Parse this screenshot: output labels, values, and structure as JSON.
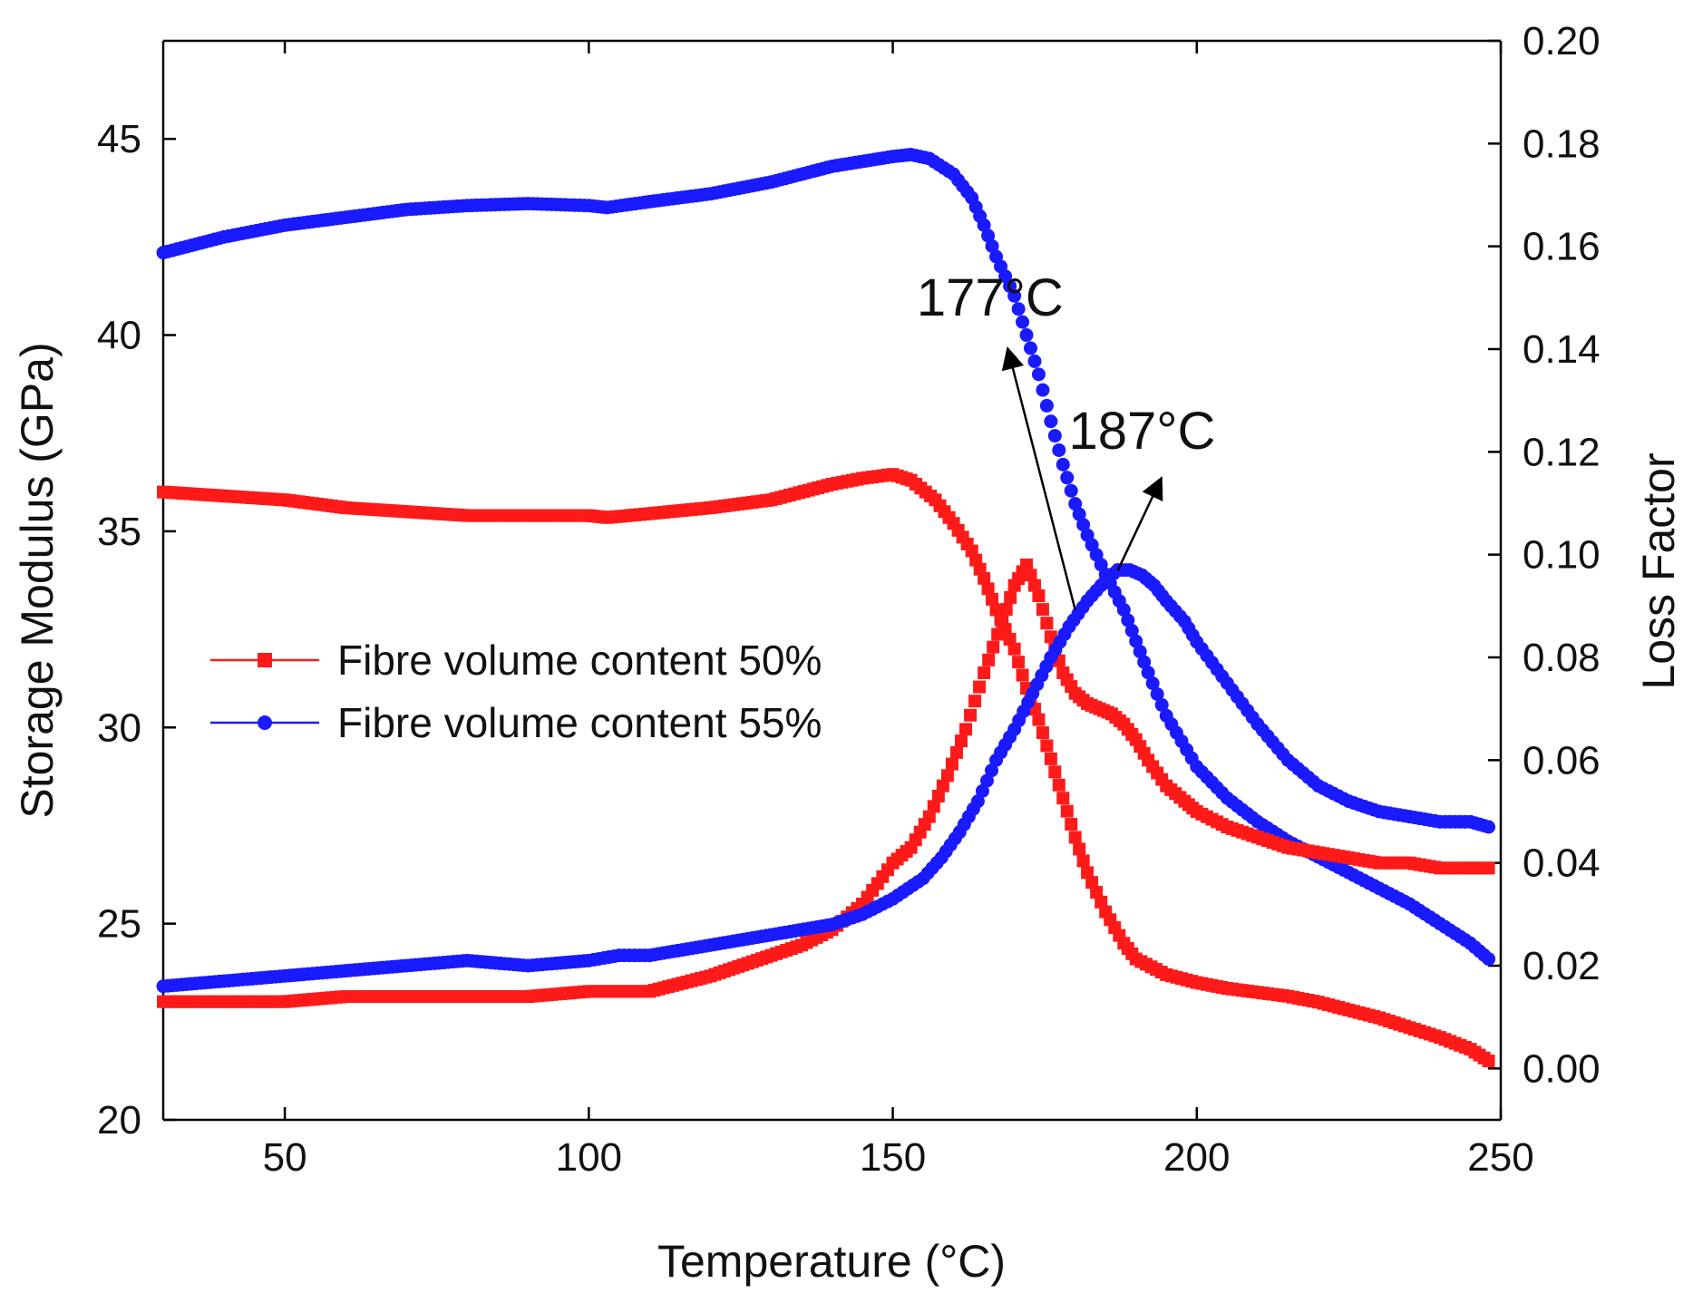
{
  "chart_data": {
    "type": "scatter",
    "title": "",
    "xlabel": "Temperature (°C)",
    "ylabel_left": "Storage Modulus (GPa)",
    "ylabel_right": "Loss Factor",
    "xlim": [
      30,
      250
    ],
    "ylim_left": [
      20,
      47.5
    ],
    "ylim_right": [
      -0.01,
      0.2
    ],
    "x_ticks": [
      "50",
      "100",
      "150",
      "200",
      "250"
    ],
    "y_left_ticks": [
      "20",
      "25",
      "30",
      "35",
      "40",
      "45"
    ],
    "y_right_ticks": [
      "0.00",
      "0.02",
      "0.04",
      "0.06",
      "0.08",
      "0.10",
      "0.12",
      "0.14",
      "0.16",
      "0.18",
      "0.20"
    ],
    "grid": false,
    "legend_position": "center-left",
    "series": [
      {
        "name": "Fibre volume content 50%",
        "color": "#ff1a1a",
        "marker": "square",
        "axis": "left",
        "quantity": "storage modulus",
        "x": [
          30,
          40,
          50,
          60,
          70,
          80,
          90,
          100,
          103,
          110,
          120,
          130,
          140,
          145,
          150,
          153,
          157,
          160,
          163,
          165,
          167,
          170,
          172,
          174,
          176,
          178,
          180,
          182,
          185,
          188,
          190,
          195,
          200,
          205,
          210,
          215,
          220,
          225,
          230,
          235,
          240,
          245,
          248
        ],
        "y": [
          36.0,
          35.9,
          35.8,
          35.6,
          35.5,
          35.4,
          35.4,
          35.4,
          35.35,
          35.45,
          35.6,
          35.8,
          36.2,
          36.35,
          36.45,
          36.3,
          35.8,
          35.2,
          34.5,
          33.8,
          33.0,
          32.0,
          31.0,
          30.2,
          29.2,
          28.2,
          27.2,
          26.3,
          25.3,
          24.5,
          24.1,
          23.7,
          23.5,
          23.35,
          23.25,
          23.15,
          23.0,
          22.8,
          22.6,
          22.35,
          22.1,
          21.8,
          21.5
        ]
      },
      {
        "name": "Fibre volume content 55%",
        "color": "#1a1aff",
        "marker": "circle",
        "axis": "left",
        "quantity": "storage modulus",
        "x": [
          30,
          40,
          50,
          60,
          70,
          80,
          90,
          100,
          103,
          110,
          120,
          130,
          140,
          150,
          153,
          156,
          160,
          163,
          165,
          167,
          170,
          172,
          174,
          176,
          178,
          180,
          182,
          185,
          188,
          190,
          192,
          195,
          200,
          205,
          210,
          215,
          220,
          225,
          230,
          235,
          240,
          245,
          248
        ],
        "y": [
          42.1,
          42.5,
          42.8,
          43.0,
          43.2,
          43.3,
          43.35,
          43.3,
          43.25,
          43.4,
          43.6,
          43.9,
          44.3,
          44.55,
          44.6,
          44.5,
          44.1,
          43.5,
          42.8,
          42.0,
          41.0,
          40.0,
          39.0,
          37.8,
          36.7,
          35.7,
          34.9,
          33.9,
          33.0,
          32.2,
          31.4,
          30.3,
          29.0,
          28.2,
          27.6,
          27.1,
          26.7,
          26.3,
          25.9,
          25.5,
          25.0,
          24.5,
          24.1
        ]
      },
      {
        "name": "Fibre volume content 50%",
        "color": "#ff1a1a",
        "marker": "square",
        "axis": "right",
        "quantity": "loss factor",
        "x": [
          30,
          40,
          50,
          60,
          70,
          80,
          90,
          100,
          105,
          110,
          120,
          130,
          135,
          140,
          145,
          150,
          153,
          156,
          159,
          162,
          165,
          168,
          170,
          172,
          174,
          176,
          178,
          180,
          182,
          184,
          186,
          188,
          190,
          192,
          195,
          198,
          200,
          205,
          210,
          215,
          220,
          225,
          230,
          235,
          240,
          245,
          248
        ],
        "y": [
          0.013,
          0.013,
          0.013,
          0.014,
          0.014,
          0.014,
          0.014,
          0.015,
          0.015,
          0.015,
          0.018,
          0.022,
          0.024,
          0.027,
          0.032,
          0.04,
          0.043,
          0.049,
          0.057,
          0.066,
          0.077,
          0.087,
          0.094,
          0.098,
          0.092,
          0.084,
          0.077,
          0.073,
          0.071,
          0.07,
          0.069,
          0.067,
          0.064,
          0.06,
          0.055,
          0.052,
          0.05,
          0.047,
          0.045,
          0.043,
          0.042,
          0.041,
          0.04,
          0.04,
          0.039,
          0.039,
          0.039
        ]
      },
      {
        "name": "Fibre volume content 55%",
        "color": "#1a1aff",
        "marker": "circle",
        "axis": "right",
        "quantity": "loss factor",
        "x": [
          30,
          40,
          50,
          60,
          70,
          80,
          90,
          100,
          105,
          110,
          120,
          130,
          140,
          145,
          150,
          155,
          158,
          161,
          164,
          167,
          170,
          173,
          176,
          179,
          182,
          185,
          187,
          189,
          191,
          193,
          195,
          198,
          200,
          205,
          210,
          215,
          220,
          225,
          230,
          235,
          240,
          245,
          248
        ],
        "y": [
          0.016,
          0.017,
          0.018,
          0.019,
          0.02,
          0.021,
          0.02,
          0.021,
          0.022,
          0.022,
          0.024,
          0.026,
          0.028,
          0.03,
          0.033,
          0.037,
          0.041,
          0.046,
          0.052,
          0.06,
          0.066,
          0.073,
          0.08,
          0.086,
          0.091,
          0.095,
          0.097,
          0.097,
          0.096,
          0.094,
          0.091,
          0.087,
          0.083,
          0.075,
          0.067,
          0.06,
          0.055,
          0.052,
          0.05,
          0.049,
          0.048,
          0.048,
          0.047
        ]
      }
    ],
    "annotations": [
      {
        "text": "177°C",
        "arrow_from": [
          180,
          33.0
        ],
        "arrow_to": [
          169,
          39.6
        ],
        "text_at": [
          166,
          40.5
        ],
        "axis": "left"
      },
      {
        "text": "187°C",
        "arrow_from": [
          187,
          34.0
        ],
        "arrow_to": [
          194,
          36.3
        ],
        "text_at": [
          191,
          37.1
        ],
        "axis": "left"
      }
    ]
  }
}
